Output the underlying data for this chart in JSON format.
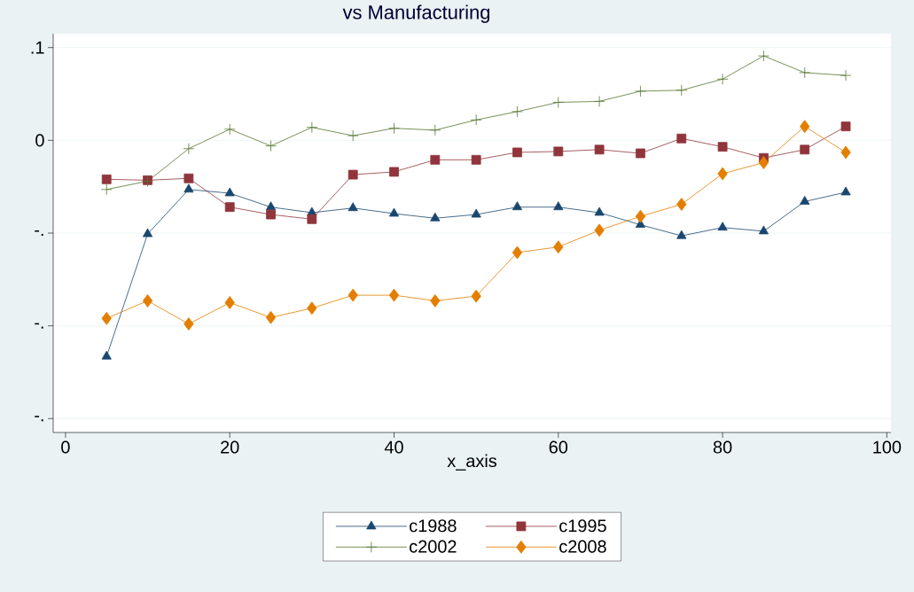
{
  "chart_data": {
    "type": "line",
    "title": "vs Manufacturing",
    "xlabel": "x_axis",
    "x": [
      5,
      10,
      15,
      20,
      25,
      30,
      35,
      40,
      45,
      50,
      55,
      60,
      65,
      70,
      75,
      80,
      85,
      90,
      95
    ],
    "series": [
      {
        "name": "c1988",
        "color": "#1a476f",
        "marker": "triangle",
        "values": [
          -0.233,
          -0.101,
          -0.053,
          -0.057,
          -0.072,
          -0.078,
          -0.073,
          -0.079,
          -0.084,
          -0.08,
          -0.072,
          -0.072,
          -0.078,
          -0.091,
          -0.103,
          -0.094,
          -0.098,
          -0.066,
          -0.056
        ]
      },
      {
        "name": "c1995",
        "color": "#90353b",
        "marker": "square",
        "values": [
          -0.042,
          -0.043,
          -0.041,
          -0.072,
          -0.08,
          -0.085,
          -0.037,
          -0.034,
          -0.021,
          -0.021,
          -0.013,
          -0.012,
          -0.01,
          -0.014,
          0.002,
          -0.007,
          -0.019,
          -0.01,
          0.015
        ]
      },
      {
        "name": "c2002",
        "color": "#55752f",
        "marker": "cross",
        "values": [
          -0.053,
          -0.044,
          -0.009,
          0.012,
          -0.006,
          0.014,
          0.005,
          0.013,
          0.011,
          0.022,
          0.031,
          0.041,
          0.042,
          0.053,
          0.054,
          0.066,
          0.091,
          0.073,
          0.07
        ]
      },
      {
        "name": "c2008",
        "color": "#e37e00",
        "marker": "diamond",
        "values": [
          -0.192,
          -0.173,
          -0.198,
          -0.175,
          -0.191,
          -0.181,
          -0.167,
          -0.167,
          -0.173,
          -0.168,
          -0.121,
          -0.115,
          -0.097,
          -0.082,
          -0.069,
          -0.036,
          -0.024,
          0.015,
          -0.013
        ]
      }
    ],
    "xlim": [
      -1.5,
      100.5
    ],
    "xticks": [
      0,
      20,
      40,
      60,
      80,
      100
    ],
    "ylim": [
      -0.315,
      0.115
    ],
    "yticks": [
      {
        "value": -0.3,
        "label": "-."
      },
      {
        "value": -0.2,
        "label": "-."
      },
      {
        "value": -0.1,
        "label": "-."
      },
      0,
      {
        "value": 0.1,
        "label": ".1"
      }
    ],
    "grid": "y",
    "legend": "bottom"
  }
}
